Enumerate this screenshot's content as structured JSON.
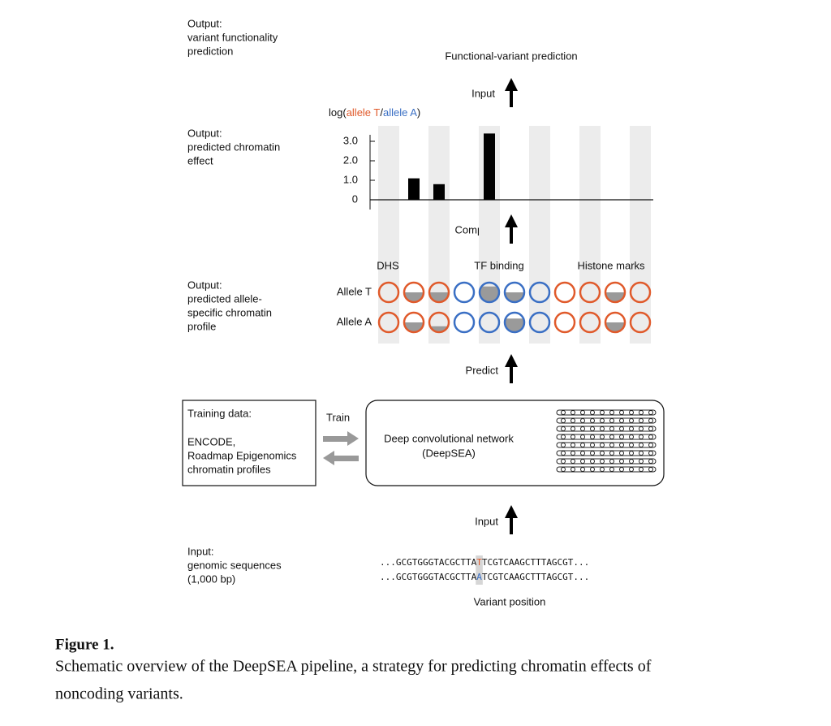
{
  "left_labels": [
    [
      "Output:",
      "variant functionality",
      "prediction"
    ],
    [
      "Output:",
      "predicted chromatin",
      "effect"
    ],
    [
      "Output:",
      "predicted allele-",
      "specific chromatin",
      "profile"
    ],
    [
      "Input:",
      "genomic sequences",
      "(1,000 bp)"
    ]
  ],
  "functional_prediction": "Functional-variant prediction",
  "steps": {
    "input_top": "Input",
    "compare": "Compare",
    "predict": "Predict",
    "input_bottom": "Input",
    "train": "Train"
  },
  "chart_data": {
    "type": "bar",
    "y_label_parts": [
      {
        "text": "log(",
        "color": "#111111"
      },
      {
        "text": "allele T",
        "color": "#e05a2b"
      },
      {
        "text": "/",
        "color": "#111111"
      },
      {
        "text": "allele A",
        "color": "#3a6fc4"
      },
      {
        "text": ")",
        "color": "#111111"
      }
    ],
    "values": [
      null,
      1.1,
      0.8,
      null,
      3.4,
      null,
      null,
      null,
      null,
      null,
      null
    ],
    "color": "#000000",
    "ylim": [
      0,
      3.5
    ],
    "yticks": [
      0,
      {
        "value": 1,
        "label": "1.0"
      },
      {
        "value": 2,
        "label": "2.0"
      },
      {
        "value": 3,
        "label": "3.0"
      }
    ]
  },
  "profile": {
    "groups": [
      "DHS",
      "TF binding",
      "Histone marks"
    ],
    "circle_colors": [
      "#e05a2b",
      "#e05a2b",
      "#e05a2b",
      "#3a6fc4",
      "#3a6fc4",
      "#3a6fc4",
      "#3a6fc4",
      "#e05a2b",
      "#e05a2b",
      "#e05a2b",
      "#e05a2b"
    ],
    "rows": [
      {
        "name": "Allele T",
        "color": "#e05a2b",
        "fill_fractions": [
          0,
          0.5,
          0.5,
          0,
          0.8,
          0.5,
          0,
          0,
          0,
          0.5,
          0
        ]
      },
      {
        "name": "Allele A",
        "color": "#3a6fc4",
        "fill_fractions": [
          0,
          0.5,
          0.3,
          0,
          0,
          0.7,
          0,
          0,
          0,
          0.5,
          0
        ]
      }
    ]
  },
  "training_box": [
    "Training data:",
    "ENCODE,",
    "Roadmap Epigenomics",
    "chromatin profiles"
  ],
  "network_box": [
    "Deep convolutional network",
    "(DeepSEA)"
  ],
  "sequences": [
    [
      {
        "text": "...GCGTGGGTACGCTTA",
        "color": "#111111"
      },
      {
        "text": "T",
        "color": "#e05a2b"
      },
      {
        "text": "TCGTCAAGCTTTAGCGT...",
        "color": "#111111"
      }
    ],
    [
      {
        "text": "...GCGTGGGTACGCTTA",
        "color": "#111111"
      },
      {
        "text": "A",
        "color": "#3a6fc4"
      },
      {
        "text": "TCGTCAAGCTTTAGCGT...",
        "color": "#111111"
      }
    ]
  ],
  "variant_position": "Variant position",
  "caption": {
    "label": "Figure 1.",
    "lines": [
      "Schematic overview of the DeepSEA pipeline, a strategy for predicting chromatin effects of",
      "noncoding variants."
    ]
  }
}
